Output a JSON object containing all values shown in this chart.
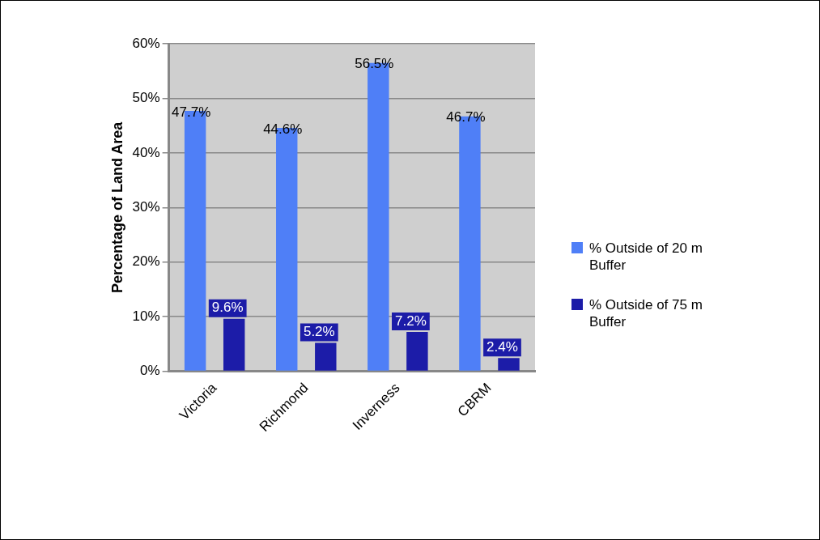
{
  "chart_data": {
    "type": "bar",
    "ylabel": "Percentage of Land Area",
    "categories": [
      "Victoria",
      "Richmond",
      "Inverness",
      "CBRM"
    ],
    "series": [
      {
        "name": "% Outside of 20 m Buffer",
        "color": "#4f7ff7",
        "values": [
          47.7,
          44.6,
          56.5,
          46.7
        ],
        "value_labels": [
          "47.7%",
          "44.6%",
          "56.5%",
          "46.7%"
        ]
      },
      {
        "name": "% Outside of 75 m Buffer",
        "color": "#1c1ca8",
        "values": [
          9.6,
          5.2,
          7.2,
          2.4
        ],
        "value_labels": [
          "9.6%",
          "5.2%",
          "7.2%",
          "2.4%"
        ]
      }
    ],
    "ylim": [
      0,
      60
    ],
    "yticks": [
      {
        "value": 0,
        "label": "0%"
      },
      {
        "value": 10,
        "label": "10%"
      },
      {
        "value": 20,
        "label": "20%"
      },
      {
        "value": 30,
        "label": "30%"
      },
      {
        "value": 40,
        "label": "40%"
      },
      {
        "value": 50,
        "label": "50%"
      },
      {
        "value": 60,
        "label": "60%"
      }
    ],
    "grid": "y",
    "legend": "right"
  }
}
